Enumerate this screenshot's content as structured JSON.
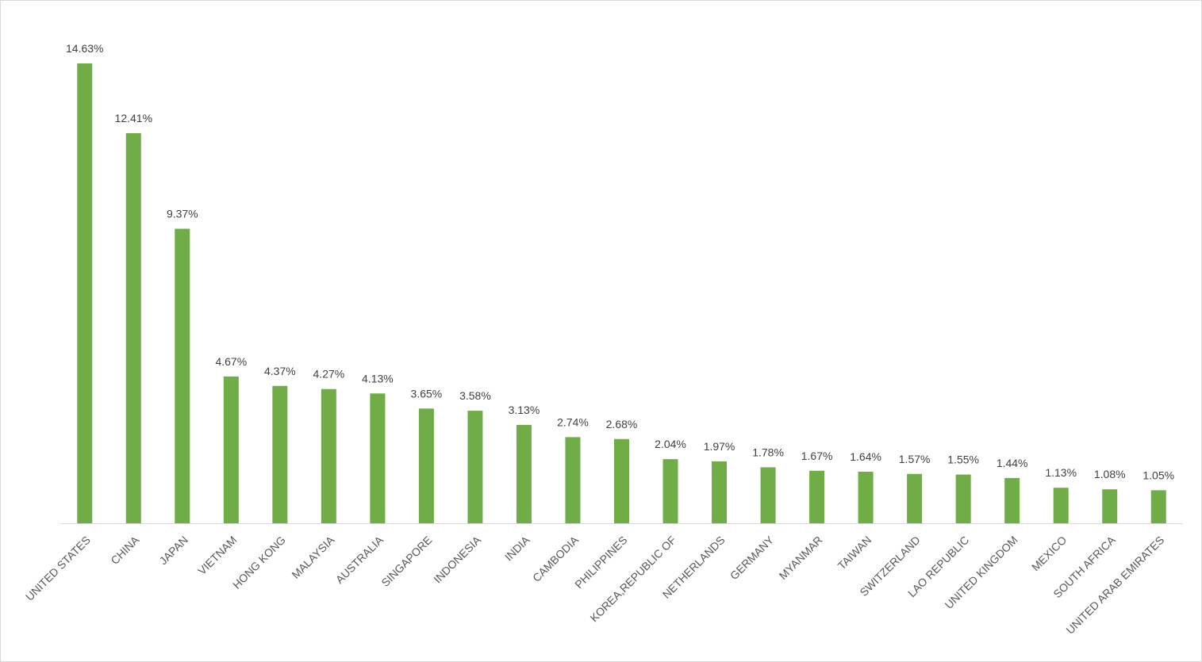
{
  "chart_data": {
    "type": "bar",
    "title": "",
    "xlabel": "",
    "ylabel": "",
    "categories": [
      "UNITED STATES",
      "CHINA",
      "JAPAN",
      "VIETNAM",
      "HONG KONG",
      "MALAYSIA",
      "AUSTRALIA",
      "SINGAPORE",
      "INDONESIA",
      "INDIA",
      "CAMBODIA",
      "PHILIPPINES",
      "KOREA,REPUBLIC OF",
      "NETHERLANDS",
      "GERMANY",
      "MYANMAR",
      "TAIWAN",
      "SWITZERLAND",
      "LAO REPUBLIC",
      "UNITED KINGDOM",
      "MEXICO",
      "SOUTH AFRICA",
      "UNITED ARAB EMIRATES"
    ],
    "values": [
      14.63,
      12.41,
      9.37,
      4.67,
      4.37,
      4.27,
      4.13,
      3.65,
      3.58,
      3.13,
      2.74,
      2.68,
      2.04,
      1.97,
      1.78,
      1.67,
      1.64,
      1.57,
      1.55,
      1.44,
      1.13,
      1.08,
      1.05
    ],
    "data_labels": [
      "14.63%",
      "12.41%",
      "9.37%",
      "4.67%",
      "4.37%",
      "4.27%",
      "4.13%",
      "3.65%",
      "3.58%",
      "3.13%",
      "2.74%",
      "2.68%",
      "2.04%",
      "1.97%",
      "1.78%",
      "1.67%",
      "1.64%",
      "1.57%",
      "1.55%",
      "1.44%",
      "1.13%",
      "1.08%",
      "1.05%"
    ],
    "ylim": [
      0,
      14.63
    ],
    "grid": false,
    "legend": "none",
    "bar_color": "#70ad47",
    "axis_color": "#d9d9d9",
    "label_color": "#404040",
    "category_label_color": "#595959"
  }
}
